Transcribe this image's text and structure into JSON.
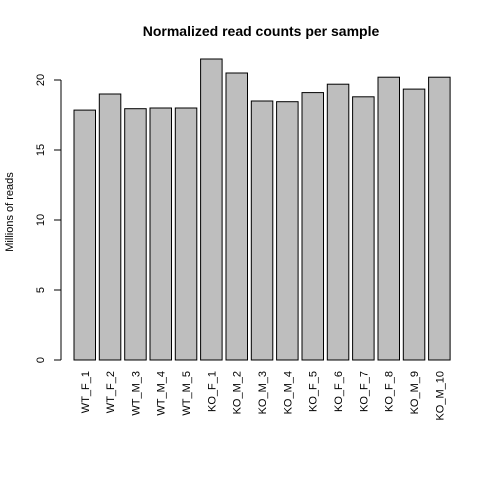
{
  "chart_data": {
    "type": "bar",
    "title": "Normalized read counts per sample",
    "xlabel": "",
    "ylabel": "Millions of reads",
    "categories": [
      "WT_F_1",
      "WT_F_2",
      "WT_M_3",
      "WT_M_4",
      "WT_M_5",
      "KO_F_1",
      "KO_M_2",
      "KO_M_3",
      "KO_M_4",
      "KO_F_5",
      "KO_F_6",
      "KO_F_7",
      "KO_F_8",
      "KO_M_9",
      "KO_M_10"
    ],
    "values": [
      17.85,
      19.0,
      17.95,
      18.0,
      18.0,
      21.5,
      20.5,
      18.5,
      18.45,
      19.1,
      19.7,
      18.8,
      20.2,
      19.35,
      20.2
    ],
    "ylim": [
      0,
      21.5
    ],
    "yticks": [
      0,
      5,
      10,
      15,
      20
    ],
    "bar_color": "#bebebe",
    "grid": false,
    "legend": "none"
  }
}
